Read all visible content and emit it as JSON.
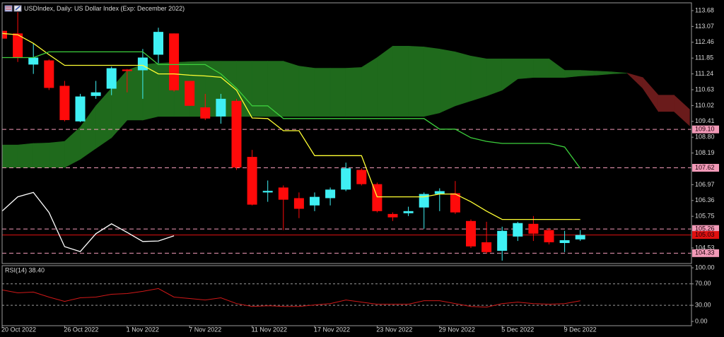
{
  "chart_data": [
    {
      "type": "candlestick",
      "title": "USDIndex, Daily:  US Dollar Index (Exp: December 2022)",
      "categories": [
        "20 Oct 2022",
        null,
        null,
        null,
        "26 Oct 2022",
        null,
        null,
        null,
        "1 Nov 2022",
        null,
        null,
        null,
        "7 Nov 2022",
        null,
        null,
        null,
        "11 Nov 2022",
        null,
        null,
        null,
        "17 Nov 2022",
        null,
        null,
        null,
        "23 Nov 2022",
        null,
        null,
        null,
        "29 Nov 2022",
        null,
        null,
        null,
        "5 Dec 2022",
        null,
        null,
        null,
        "9 Dec 2022",
        null,
        null,
        null,
        null,
        null,
        null,
        null,
        null
      ],
      "open": [
        112.9,
        112.8,
        111.6,
        111.76,
        110.78,
        109.41,
        110.39,
        110.67,
        111.41,
        111.38,
        111.98,
        112.8,
        110.97,
        109.95,
        109.6,
        110.2,
        108.04,
        106.67,
        106.86,
        106.45,
        106.17,
        106.45,
        106.78,
        107.54,
        106.99,
        105.84,
        105.87,
        106.09,
        106.61,
        106.64,
        105.57,
        104.75,
        104.42,
        104.97,
        105.46,
        105.22,
        104.72,
        104.86,
        null,
        null,
        null,
        null,
        null,
        null,
        null
      ],
      "high": [
        113.3,
        113.62,
        112.42,
        111.8,
        110.97,
        110.47,
        110.97,
        111.52,
        111.43,
        112.2,
        113.02,
        112.8,
        110.97,
        110.47,
        110.47,
        110.28,
        108.31,
        107.13,
        106.94,
        106.67,
        106.67,
        106.86,
        107.82,
        107.6,
        107.05,
        105.9,
        106.12,
        106.67,
        106.83,
        107.11,
        105.63,
        105.54,
        105.35,
        105.54,
        105.76,
        105.3,
        105.19,
        105.22,
        null,
        null,
        null,
        null,
        null,
        null,
        null
      ],
      "low": [
        112.4,
        111.7,
        111.24,
        110.62,
        109.41,
        109.38,
        110.28,
        110.42,
        110.53,
        110.28,
        111.65,
        110.56,
        110.01,
        109.46,
        109.32,
        107.54,
        106.17,
        106.31,
        105.22,
        105.68,
        105.95,
        106.17,
        106.72,
        106.94,
        105.9,
        105.57,
        105.76,
        105.27,
        105.95,
        105.84,
        104.53,
        104.31,
        104.04,
        104.8,
        104.8,
        104.67,
        104.37,
        104.8,
        null,
        null,
        null,
        null,
        null,
        null,
        null
      ],
      "close": [
        112.6,
        111.87,
        111.87,
        110.7,
        109.46,
        110.37,
        110.53,
        111.46,
        111.35,
        111.87,
        112.86,
        110.61,
        110.01,
        109.52,
        110.28,
        107.63,
        106.2,
        106.73,
        106.39,
        106.04,
        106.5,
        106.78,
        107.6,
        106.99,
        105.95,
        105.71,
        105.95,
        106.61,
        106.72,
        105.9,
        104.59,
        104.37,
        105.19,
        105.49,
        105.08,
        104.75,
        104.83,
        105.03,
        null,
        null,
        null,
        null,
        null,
        null,
        null
      ],
      "up_color": "#3ff0f4",
      "down_color": "#ff0a0a",
      "lines": [
        {
          "color": "#ffff33",
          "values": [
            112.8,
            112.75,
            112.42,
            111.98,
            111.57,
            111.57,
            111.57,
            111.57,
            111.57,
            111.57,
            111.24,
            111.24,
            111.19,
            111.16,
            111.11,
            110.61,
            109.54,
            109.52,
            109.05,
            109.05,
            108.09,
            108.09,
            108.09,
            108.09,
            106.5,
            106.5,
            106.5,
            106.5,
            106.61,
            106.61,
            106.31,
            105.95,
            105.63,
            105.63,
            105.63,
            105.63,
            105.63,
            105.63,
            null,
            null,
            null,
            null,
            null,
            null,
            null
          ]
        },
        {
          "color": "#3ccf3c",
          "values": [
            111.87,
            111.87,
            111.87,
            112.09,
            112.09,
            112.09,
            112.09,
            112.09,
            112.09,
            112.09,
            111.6,
            111.6,
            111.6,
            111.6,
            111.24,
            110.69,
            110.01,
            110.01,
            109.52,
            109.52,
            109.52,
            109.52,
            109.52,
            109.52,
            109.52,
            109.52,
            109.52,
            109.52,
            109.11,
            109.11,
            108.78,
            108.64,
            108.56,
            108.56,
            108.56,
            108.56,
            108.42,
            107.6,
            null,
            null,
            null,
            null,
            null,
            null,
            null
          ]
        },
        {
          "color": "#ffffff",
          "values": [
            105.95,
            106.5,
            106.67,
            105.9,
            104.58,
            104.39,
            105.08,
            105.46,
            105.13,
            104.78,
            104.8,
            105.0,
            null,
            null,
            null,
            null,
            null,
            null,
            null,
            null,
            null,
            null,
            null,
            null,
            null,
            null,
            null,
            null,
            null,
            null,
            null,
            null,
            null,
            null,
            null,
            null,
            null,
            null,
            null,
            null,
            null,
            null,
            null,
            null,
            null
          ]
        }
      ],
      "cloud": {
        "up_color": "#1f6a1c",
        "down_color": "#6a1b1b",
        "span_a": [
          108.5,
          108.5,
          108.56,
          108.58,
          108.64,
          109.19,
          110.01,
          110.69,
          111.38,
          111.6,
          111.65,
          111.68,
          111.71,
          111.73,
          111.73,
          111.73,
          111.73,
          111.73,
          111.73,
          111.54,
          111.46,
          111.46,
          111.46,
          111.49,
          111.87,
          112.31,
          112.31,
          112.28,
          112.2,
          112.09,
          111.93,
          111.82,
          111.82,
          111.82,
          111.82,
          111.82,
          111.38,
          111.38,
          111.35,
          111.32,
          111.27,
          110.69,
          109.79,
          109.79,
          109.24
        ],
        "span_b": [
          107.63,
          107.63,
          107.63,
          107.63,
          107.63,
          107.95,
          108.37,
          108.78,
          109.46,
          109.46,
          109.6,
          109.6,
          109.6,
          109.6,
          109.6,
          109.6,
          109.6,
          109.6,
          109.6,
          109.6,
          109.6,
          109.6,
          109.6,
          109.6,
          109.6,
          109.6,
          109.6,
          109.6,
          109.74,
          110.01,
          110.2,
          110.39,
          110.61,
          111.05,
          111.1,
          111.1,
          111.1,
          111.16,
          111.19,
          111.24,
          111.27,
          111.1,
          110.42,
          110.42,
          109.87
        ]
      },
      "price_lines": [
        {
          "value": 109.1,
          "label": "109.10",
          "color": "#f29ab8",
          "dashed": true
        },
        {
          "value": 107.62,
          "label": "107.62",
          "color": "#f29ab8",
          "dashed": true
        },
        {
          "value": 105.26,
          "label": "105.26",
          "color": "#f29ab8",
          "dashed": true
        },
        {
          "value": 105.03,
          "label": "105.03",
          "color": "#e01010",
          "dashed": false
        },
        {
          "value": 104.33,
          "label": "104.33",
          "color": "#f29ab8",
          "dashed": true
        }
      ],
      "ylim": [
        103.93,
        113.98
      ],
      "yticks": [
        113.68,
        113.07,
        112.46,
        111.85,
        111.24,
        110.63,
        110.02,
        109.41,
        {
          "value": 108.8,
          "label": "108.80"
        },
        108.19,
        106.97,
        106.36,
        105.75,
        104.53
      ]
    },
    {
      "type": "line",
      "title": "RSI(14) 38.40",
      "color": "#d01818",
      "values": [
        58.7,
        53.3,
        54.7,
        45.3,
        37.3,
        44,
        45.3,
        50.7,
        52,
        56,
        61.3,
        45.3,
        42.7,
        40,
        44,
        33.3,
        28,
        29.3,
        28,
        28,
        30.7,
        33.3,
        40,
        36,
        32,
        32,
        32,
        38.7,
        38.7,
        33.3,
        28,
        26.7,
        33.3,
        36,
        33.3,
        32,
        33.3,
        38.4,
        null,
        null,
        null,
        null,
        null,
        null,
        null
      ],
      "levels": [
        70,
        30
      ],
      "ylim": [
        -8,
        104
      ],
      "yticks": [
        {
          "value": 100,
          "label": "100.00"
        },
        {
          "value": 70,
          "label": "70.00"
        },
        {
          "value": 30,
          "label": "30.00"
        },
        {
          "value": 0,
          "label": "0.00"
        }
      ]
    }
  ]
}
